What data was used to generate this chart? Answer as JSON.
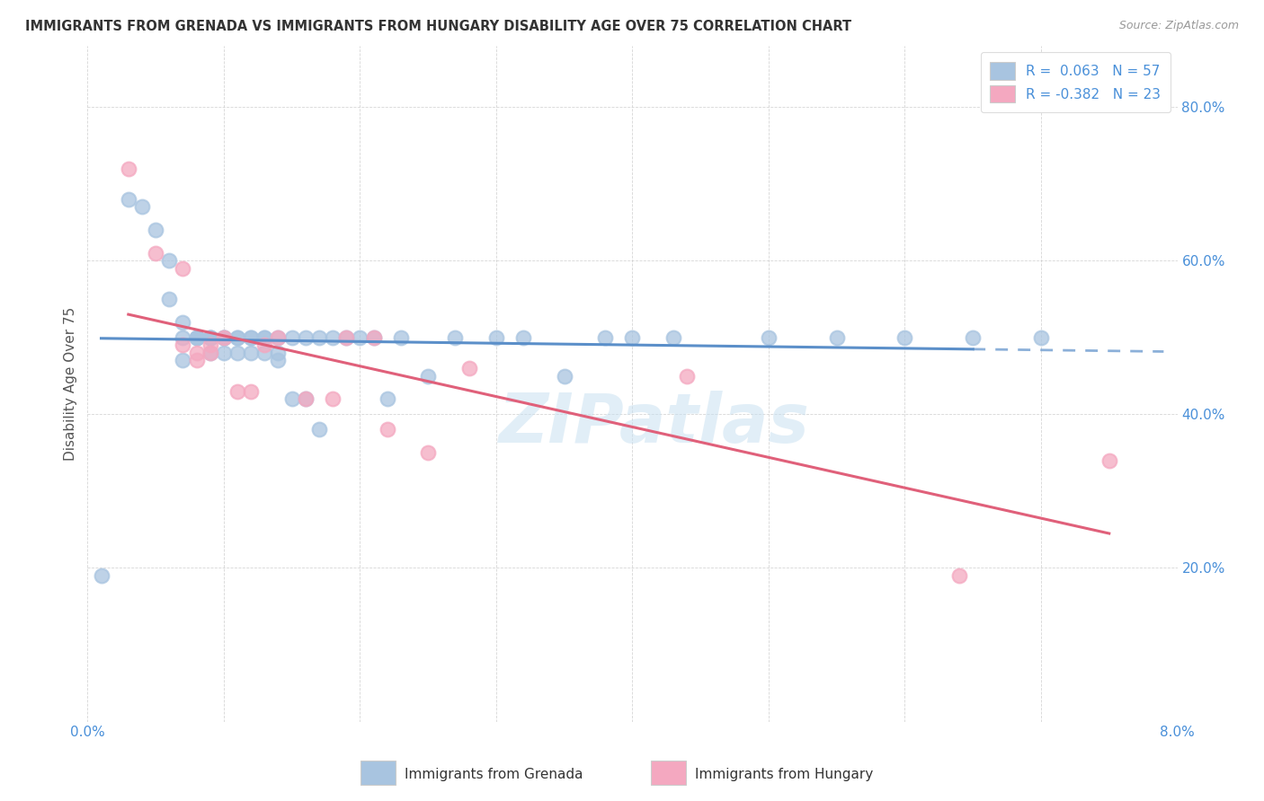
{
  "title": "IMMIGRANTS FROM GRENADA VS IMMIGRANTS FROM HUNGARY DISABILITY AGE OVER 75 CORRELATION CHART",
  "source": "Source: ZipAtlas.com",
  "ylabel": "Disability Age Over 75",
  "xlim": [
    0.0,
    0.08
  ],
  "ylim": [
    0.0,
    0.88
  ],
  "legend_r1": "R =  0.063",
  "legend_n1": "N = 57",
  "legend_r2": "R = -0.382",
  "legend_n2": "N = 23",
  "color_grenada": "#a8c4e0",
  "color_hungary": "#f4a8c0",
  "color_blue": "#4a90d9",
  "color_pink": "#e05080",
  "color_trendline_grenada": "#5b8fc9",
  "color_trendline_hungary": "#e0607a",
  "watermark": "ZIPatlas",
  "background_color": "#ffffff",
  "grenada_x": [
    0.001,
    0.003,
    0.004,
    0.005,
    0.006,
    0.006,
    0.007,
    0.007,
    0.007,
    0.008,
    0.008,
    0.008,
    0.009,
    0.009,
    0.009,
    0.009,
    0.01,
    0.01,
    0.01,
    0.01,
    0.011,
    0.011,
    0.011,
    0.012,
    0.012,
    0.012,
    0.013,
    0.013,
    0.013,
    0.014,
    0.014,
    0.014,
    0.015,
    0.015,
    0.016,
    0.016,
    0.017,
    0.017,
    0.018,
    0.019,
    0.02,
    0.021,
    0.022,
    0.023,
    0.025,
    0.027,
    0.03,
    0.032,
    0.035,
    0.038,
    0.04,
    0.043,
    0.05,
    0.055,
    0.06,
    0.065,
    0.07
  ],
  "grenada_y": [
    0.19,
    0.68,
    0.67,
    0.64,
    0.6,
    0.55,
    0.5,
    0.52,
    0.47,
    0.5,
    0.5,
    0.5,
    0.5,
    0.5,
    0.48,
    0.5,
    0.5,
    0.5,
    0.5,
    0.48,
    0.5,
    0.5,
    0.48,
    0.5,
    0.5,
    0.48,
    0.5,
    0.48,
    0.5,
    0.5,
    0.48,
    0.47,
    0.5,
    0.42,
    0.5,
    0.42,
    0.5,
    0.38,
    0.5,
    0.5,
    0.5,
    0.5,
    0.42,
    0.5,
    0.45,
    0.5,
    0.5,
    0.5,
    0.45,
    0.5,
    0.5,
    0.5,
    0.5,
    0.5,
    0.5,
    0.5,
    0.5
  ],
  "hungary_x": [
    0.003,
    0.005,
    0.007,
    0.007,
    0.008,
    0.008,
    0.009,
    0.009,
    0.01,
    0.011,
    0.012,
    0.013,
    0.014,
    0.016,
    0.018,
    0.019,
    0.021,
    0.022,
    0.025,
    0.028,
    0.044,
    0.064,
    0.075
  ],
  "hungary_y": [
    0.72,
    0.61,
    0.59,
    0.49,
    0.48,
    0.47,
    0.49,
    0.48,
    0.5,
    0.43,
    0.43,
    0.49,
    0.5,
    0.42,
    0.42,
    0.5,
    0.5,
    0.38,
    0.35,
    0.46,
    0.45,
    0.19,
    0.34
  ]
}
